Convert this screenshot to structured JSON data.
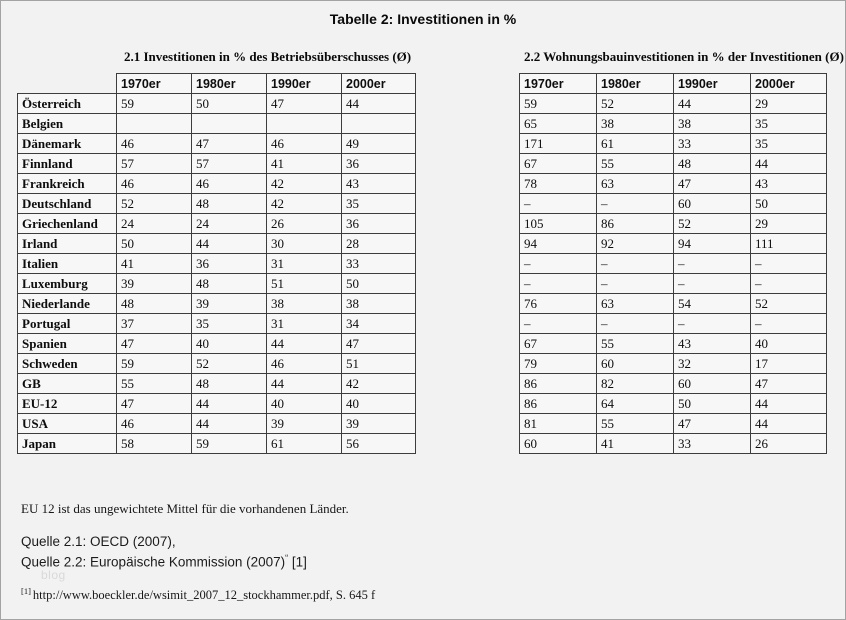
{
  "page": {
    "title": "Tabelle 2: Investitionen in %"
  },
  "colors": {
    "page_background": "#f2f2f2",
    "cell_background": "#f7f7f7",
    "table_border": "#3d3d3d",
    "watermark_gray": "#d9d9d9"
  },
  "tables": [
    {
      "id": "table21",
      "heading": "2.1 Investitionen in % des Betriebsüberschusses (Ø)",
      "corner_blank": true,
      "columns": [
        "1970er",
        "1980er",
        "1990er",
        "2000er"
      ],
      "rows": [
        {
          "country": "Österreich",
          "values": [
            "59",
            "50",
            "47",
            "44"
          ]
        },
        {
          "country": "Belgien",
          "values": [
            "",
            "",
            "",
            ""
          ]
        },
        {
          "country": "Dänemark",
          "values": [
            "46",
            "47",
            "46",
            "49"
          ]
        },
        {
          "country": "Finnland",
          "values": [
            "57",
            "57",
            "41",
            "36"
          ]
        },
        {
          "country": "Frankreich",
          "values": [
            "46",
            "46",
            "42",
            "43"
          ]
        },
        {
          "country": "Deutschland",
          "values": [
            "52",
            "48",
            "42",
            "35"
          ]
        },
        {
          "country": "Griechenland",
          "values": [
            "24",
            "24",
            "26",
            "36"
          ]
        },
        {
          "country": "Irland",
          "values": [
            "50",
            "44",
            "30",
            "28"
          ]
        },
        {
          "country": "Italien",
          "values": [
            "41",
            "36",
            "31",
            "33"
          ]
        },
        {
          "country": "Luxemburg",
          "values": [
            "39",
            "48",
            "51",
            "50"
          ]
        },
        {
          "country": "Niederlande",
          "values": [
            "48",
            "39",
            "38",
            "38"
          ]
        },
        {
          "country": "Portugal",
          "values": [
            "37",
            "35",
            "31",
            "34"
          ]
        },
        {
          "country": "Spanien",
          "values": [
            "47",
            "40",
            "44",
            "47"
          ]
        },
        {
          "country": "Schweden",
          "values": [
            "59",
            "52",
            "46",
            "51"
          ]
        },
        {
          "country": "GB",
          "values": [
            "55",
            "48",
            "44",
            "42"
          ]
        },
        {
          "country": "EU-12",
          "values": [
            "47",
            "44",
            "40",
            "40"
          ]
        },
        {
          "country": "USA",
          "values": [
            "46",
            "44",
            "39",
            "39"
          ]
        },
        {
          "country": "Japan",
          "values": [
            "58",
            "59",
            "61",
            "56"
          ]
        }
      ]
    },
    {
      "id": "table22",
      "heading": "2.2 Wohnungsbauinvestitionen in % der Investitionen (Ø)",
      "corner_blank": false,
      "columns": [
        "1970er",
        "1980er",
        "1990er",
        "2000er"
      ],
      "rows": [
        {
          "country": "Österreich",
          "values": [
            "59",
            "52",
            "44",
            "29"
          ]
        },
        {
          "country": "Belgien",
          "values": [
            "65",
            "38",
            "38",
            "35"
          ]
        },
        {
          "country": "Dänemark",
          "values": [
            "171",
            "61",
            "33",
            "35"
          ]
        },
        {
          "country": "Finnland",
          "values": [
            "67",
            "55",
            "48",
            "44"
          ]
        },
        {
          "country": "Frankreich",
          "values": [
            "78",
            "63",
            "47",
            "43"
          ]
        },
        {
          "country": "Deutschland",
          "values": [
            "–",
            "–",
            "60",
            "50"
          ]
        },
        {
          "country": "Griechenland",
          "values": [
            "105",
            "86",
            "52",
            "29"
          ]
        },
        {
          "country": "Irland",
          "values": [
            "94",
            "92",
            "94",
            "111"
          ]
        },
        {
          "country": "Italien",
          "values": [
            "–",
            "–",
            "–",
            "–"
          ]
        },
        {
          "country": "Luxemburg",
          "values": [
            "–",
            "–",
            "–",
            "–"
          ]
        },
        {
          "country": "Niederlande",
          "values": [
            "76",
            "63",
            "54",
            "52"
          ]
        },
        {
          "country": "Portugal",
          "values": [
            "–",
            "–",
            "–",
            "–"
          ]
        },
        {
          "country": "Spanien",
          "values": [
            "67",
            "55",
            "43",
            "40"
          ]
        },
        {
          "country": "Schweden",
          "values": [
            "79",
            "60",
            "32",
            "17"
          ]
        },
        {
          "country": "GB",
          "values": [
            "86",
            "82",
            "60",
            "47"
          ]
        },
        {
          "country": "EU-12",
          "values": [
            "86",
            "64",
            "50",
            "44"
          ]
        },
        {
          "country": "USA",
          "values": [
            "81",
            "55",
            "47",
            "44"
          ]
        },
        {
          "country": "Japan",
          "values": [
            "60",
            "41",
            "33",
            "26"
          ]
        }
      ]
    }
  ],
  "notes": {
    "eu12": "EU 12 ist das ungewichtete Mittel für die vorhandenen Länder.",
    "quelle21": "Quelle 2.1: OECD (2007),",
    "quelle22_main": "Quelle 2.2: Europäische Kommission (2007)",
    "quelle22_sup": "“",
    "quelle22_ref": " [1]",
    "footnote_marker": "[1]",
    "footnote_text": "http://www.boeckler.de/wsimit_2007_12_stockhammer.pdf, S. 645 f",
    "watermark": "blog"
  }
}
